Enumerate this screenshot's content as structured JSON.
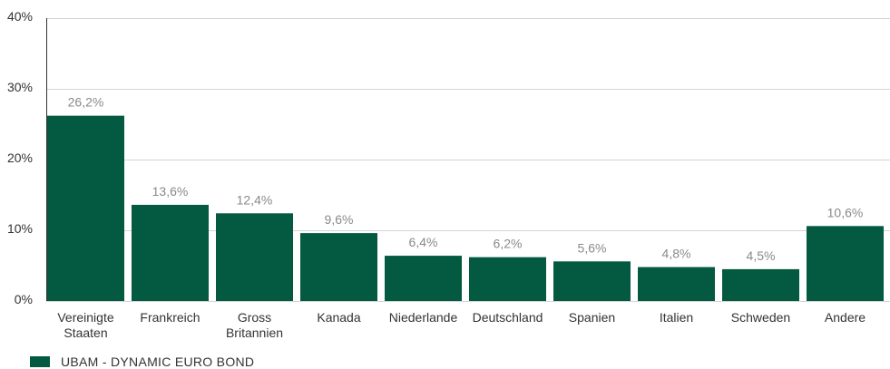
{
  "chart_data": {
    "type": "bar",
    "categories": [
      [
        "Vereinigte",
        "Staaten"
      ],
      [
        "Frankreich"
      ],
      [
        "Gross",
        "Britannien"
      ],
      [
        "Kanada"
      ],
      [
        "Niederlande"
      ],
      [
        "Deutschland"
      ],
      [
        "Spanien"
      ],
      [
        "Italien"
      ],
      [
        "Schweden"
      ],
      [
        "Andere"
      ]
    ],
    "values": [
      26.2,
      13.6,
      12.4,
      9.6,
      6.4,
      6.2,
      5.6,
      4.8,
      4.5,
      10.6
    ],
    "value_labels": [
      "26,2%",
      "13,6%",
      "12,4%",
      "9,6%",
      "6,4%",
      "6,2%",
      "5,6%",
      "4,8%",
      "4,5%",
      "10,6%"
    ],
    "y_ticks": [
      0,
      10,
      20,
      30,
      40
    ],
    "y_tick_labels": [
      "0%",
      "10%",
      "20%",
      "30%",
      "40%"
    ],
    "ylim": [
      0,
      40
    ],
    "grid": true,
    "legend_position": "bottom-left",
    "series": [
      {
        "name": "UBAM - DYNAMIC EURO BOND",
        "color": "#035a40"
      }
    ]
  }
}
